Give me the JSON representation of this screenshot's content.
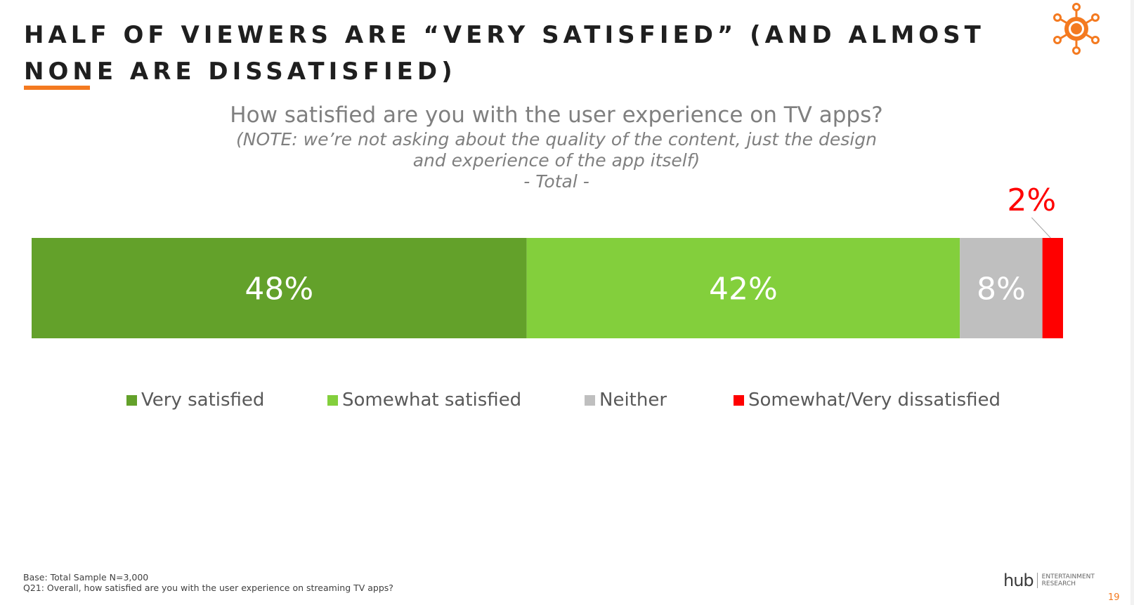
{
  "slide": {
    "title": "HALF OF VIEWERS ARE “VERY SATISFIED” (AND ALMOST NONE ARE DISSATISFIED)",
    "accent_color": "#f47a20",
    "logo_icon": "sun-network-icon"
  },
  "question": {
    "main": "How satisfied are you with the user experience on TV apps?",
    "note_line1": "(NOTE: we’re not asking about the quality of the content, just the design",
    "note_line2": "and experience of the app itself)",
    "note_line3": "- Total -"
  },
  "chart_data": {
    "type": "bar",
    "orientation": "horizontal",
    "stacked": true,
    "categories": [
      "Total"
    ],
    "series": [
      {
        "name": "Very satisfied",
        "values": [
          48
        ],
        "label": "48%",
        "color": "#63a12a"
      },
      {
        "name": "Somewhat satisfied",
        "values": [
          42
        ],
        "label": "42%",
        "color": "#83cf3c"
      },
      {
        "name": "Neither",
        "values": [
          8
        ],
        "label": "8%",
        "color": "#bfbfbf"
      },
      {
        "name": "Somewhat/Very dissatisfied",
        "values": [
          2
        ],
        "label": "2%",
        "color": "#ff0000"
      }
    ],
    "legend_position": "bottom",
    "grid": false
  },
  "footnotes": {
    "base": "Base: Total Sample N=3,000",
    "question": "Q21: Overall, how satisfied are you with the user experience on streaming TV apps?"
  },
  "brand": {
    "name": "hub",
    "sub_line1": "ENTERTAINMENT",
    "sub_line2": "RESEARCH"
  },
  "page_number": "19"
}
